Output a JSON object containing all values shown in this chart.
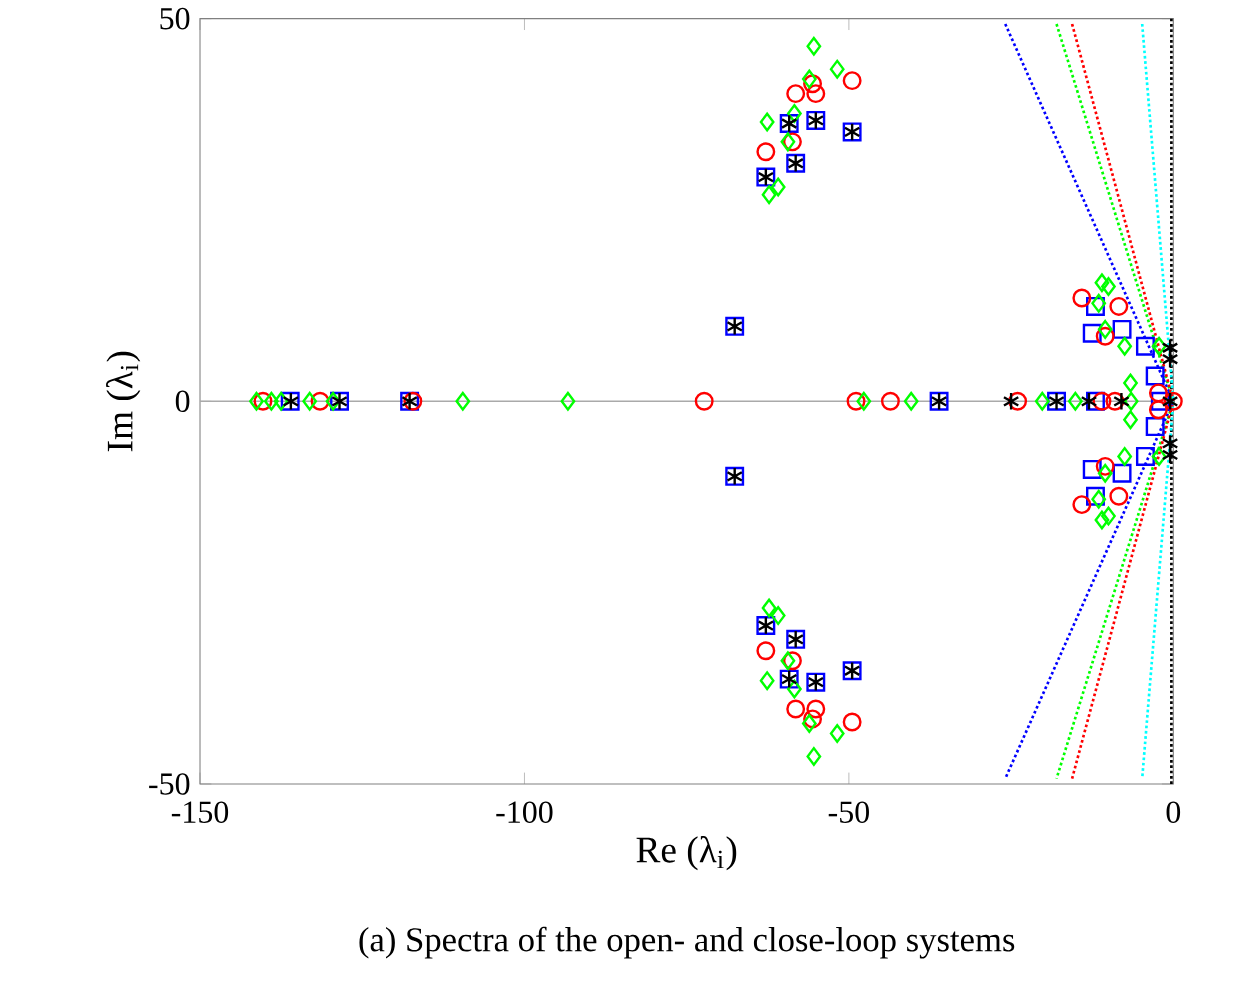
{
  "chart_data": {
    "type": "scatter",
    "xlabel": "Re (λ$_{i}$)",
    "ylabel": "Im (λ$_{i}$)",
    "annotations": [
      "(a) Spectra of the open- and close-loop systems"
    ],
    "xlim": [
      -150,
      0
    ],
    "ylim": [
      -50,
      50
    ],
    "xticks": [
      -150,
      -100,
      -50,
      0
    ],
    "yticks": [
      -50,
      0,
      50
    ],
    "ref_lines": [
      {
        "axis": "y",
        "value": 0,
        "color": "#aaaaaa",
        "line_style": "solid"
      },
      {
        "axis": "x",
        "value": -0.3,
        "color": "#000000",
        "line_style": "dotted"
      }
    ],
    "series": [
      {
        "type": "line",
        "color": "#0000ff",
        "marker": "none",
        "line_style": "dotted",
        "x": [
          -25.9,
          0,
          -25.9
        ],
        "values": [
          49.3,
          0,
          -49.3
        ]
      },
      {
        "type": "line",
        "color": "#00ff00",
        "marker": "none",
        "line_style": "dotted",
        "x": [
          -18,
          0,
          -18
        ],
        "values": [
          49.3,
          0,
          -49.3
        ]
      },
      {
        "type": "line",
        "color": "#ff0000",
        "marker": "none",
        "line_style": "dotted",
        "x": [
          -15.6,
          0,
          -15.6
        ],
        "values": [
          49.3,
          0,
          -49.3
        ]
      },
      {
        "type": "line",
        "color": "#00ffff",
        "marker": "none",
        "line_style": "dotted",
        "x": [
          -4.8,
          0,
          -4.8
        ],
        "values": [
          49.3,
          0,
          -49.3
        ]
      },
      {
        "color": "#0000ff",
        "marker": "square",
        "x": [
          -62.8,
          -58.2,
          -55.1,
          -49.5,
          -59.2,
          -62.8,
          -58.2,
          -55.1,
          -49.5,
          -59.2,
          -67.6,
          -67.6,
          -136.1,
          -128.5,
          -117.7,
          -36.1,
          -18,
          -12,
          -2,
          -12.5,
          -12,
          -7.9,
          -4.3,
          -2.8,
          -12.5,
          -12,
          -7.9,
          -4.3,
          -2.8
        ],
        "values": [
          29.3,
          31.1,
          36.7,
          35.2,
          36.3,
          -29.3,
          -31.1,
          -36.7,
          -35.2,
          -36.3,
          9.8,
          -9.8,
          0,
          0,
          0,
          0,
          0,
          0,
          0,
          8.9,
          12.4,
          9.4,
          7.2,
          3.3,
          -8.9,
          -12.4,
          -9.4,
          -7.2,
          -3.3
        ]
      },
      {
        "color": "#ff0000",
        "marker": "circle",
        "x": [
          -49.5,
          -58.2,
          -55.1,
          -55.6,
          -62.8,
          -58.7,
          -49.5,
          -58.2,
          -55.1,
          -55.6,
          -62.8,
          -58.7,
          -140.3,
          -131.5,
          -117.2,
          -72.3,
          -48.9,
          -43.6,
          -24,
          -11,
          -9,
          0,
          -14.1,
          -10.5,
          -8.4,
          -2.3,
          -14.1,
          -10.5,
          -8.4,
          -2.3
        ],
        "values": [
          41.9,
          40.2,
          40.2,
          41.5,
          32.6,
          33.9,
          -41.9,
          -40.2,
          -40.2,
          -41.5,
          -32.6,
          -33.9,
          0,
          0,
          0,
          0,
          0,
          0,
          0,
          0,
          0,
          0,
          13.5,
          8.5,
          12.4,
          1.1,
          -13.5,
          -8.5,
          -12.4,
          -1.1
        ]
      },
      {
        "color": "#00ff00",
        "marker": "diamond",
        "x": [
          -55.4,
          -51.8,
          -56.1,
          -62.6,
          -58.4,
          -59.4,
          -60.9,
          -62.3,
          -55.4,
          -51.8,
          -56.1,
          -62.6,
          -58.4,
          -59.4,
          -60.9,
          -62.3,
          -141.3,
          -139,
          -137.5,
          -133.1,
          -129.5,
          -109.5,
          -93.3,
          -47.7,
          -40.4,
          -20.2,
          -15.1,
          -6.5,
          -11,
          -10,
          -11.5,
          -10.5,
          -7.5,
          -2.2,
          -6.6,
          -11,
          -10,
          -11.5,
          -10.5,
          -7.5,
          -2.2,
          -6.6
        ],
        "values": [
          46.4,
          43.4,
          42.1,
          36.5,
          37.6,
          33.9,
          28,
          27,
          -46.4,
          -43.4,
          -42.1,
          -36.5,
          -37.6,
          -33.9,
          -28,
          -27,
          0,
          0,
          0,
          0,
          0,
          0,
          0,
          0,
          0,
          0,
          0,
          0,
          15.5,
          15,
          12.8,
          9.4,
          7.2,
          7.2,
          2.4,
          -15.5,
          -15,
          -12.8,
          -9.4,
          -7.2,
          -7.2,
          -2.4
        ]
      },
      {
        "color": "#000000",
        "marker": "cross",
        "x": [
          -62.8,
          -58.2,
          -55.1,
          -49.5,
          -59.2,
          -62.8,
          -58.2,
          -55.1,
          -49.5,
          -59.2,
          -67.6,
          -67.6,
          -136,
          -128.5,
          -117.7,
          -36.1,
          -25,
          -18,
          -13,
          -8,
          -0.5,
          -0.5,
          -0.5,
          -0.5,
          -0.5
        ],
        "values": [
          29.3,
          31.1,
          36.7,
          35.2,
          36.3,
          -29.3,
          -31.1,
          -36.7,
          -35.2,
          -36.3,
          9.8,
          -9.8,
          0,
          0,
          0,
          0,
          0,
          0,
          0,
          0,
          0,
          7,
          5.5,
          -7,
          -5.5
        ]
      }
    ]
  }
}
